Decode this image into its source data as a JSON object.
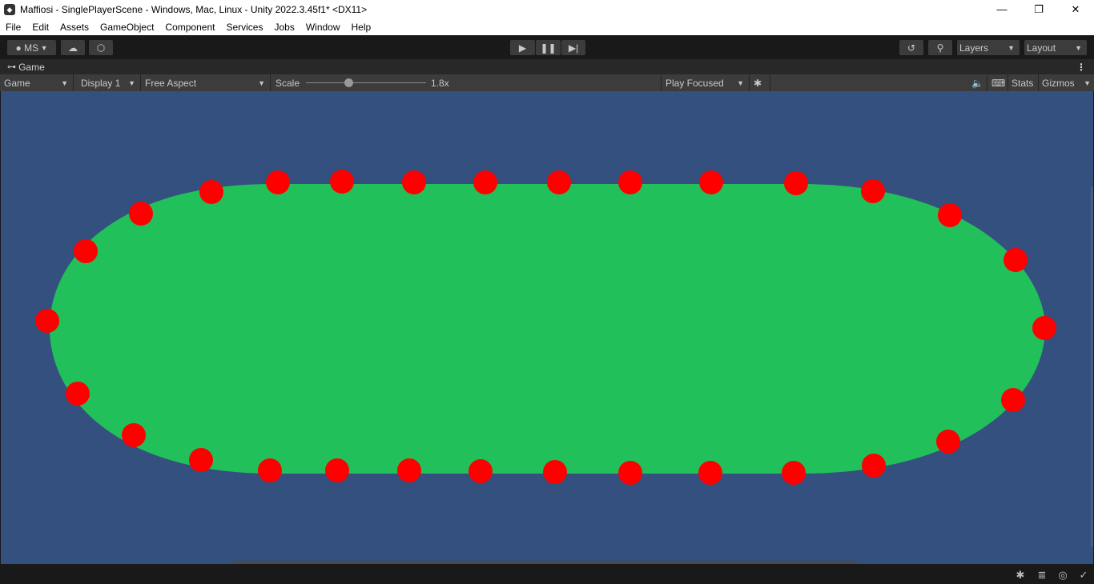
{
  "window": {
    "title": "Maffiosi - SinglePlayerScene - Windows, Mac, Linux - Unity 2022.3.45f1* <DX11>",
    "minimize": "—",
    "maximize": "❐",
    "close": "✕"
  },
  "menu": [
    "File",
    "Edit",
    "Assets",
    "GameObject",
    "Component",
    "Services",
    "Jobs",
    "Window",
    "Help"
  ],
  "toolbar": {
    "account": "MS",
    "play_icon": "play-icon",
    "pause_icon": "pause-icon",
    "step_icon": "step-icon",
    "layers": "Layers",
    "layout": "Layout"
  },
  "tab": {
    "label": "Game",
    "more": "⋮"
  },
  "gamebar": {
    "mode": "Game",
    "display": "Display 1",
    "aspect": "Free Aspect",
    "scale_label": "Scale",
    "scale_value": "1.8x",
    "scale_fraction": 0.35,
    "play_mode": "Play Focused",
    "stats": "Stats",
    "gizmos": "Gizmos"
  },
  "scene": {
    "background": "#33507f",
    "table_color": "#22c05a",
    "dot_color": "#ff0000",
    "dot_count": 30
  }
}
